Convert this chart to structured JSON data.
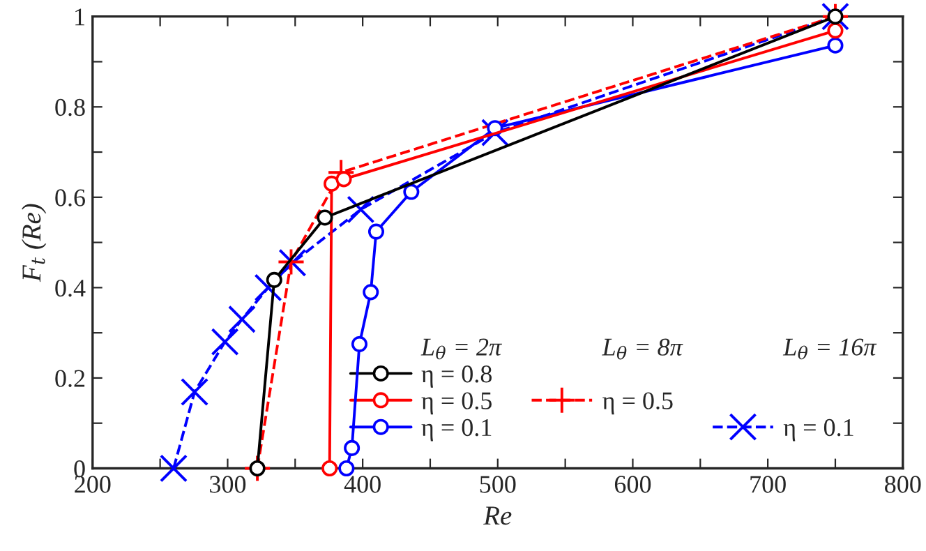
{
  "chart_data": {
    "type": "line",
    "xlabel": "Re",
    "ylabel": "F$_{t}$ (Re)",
    "xlim": [
      200,
      800
    ],
    "ylim": [
      0,
      1
    ],
    "xticks": [
      200,
      {
        "value": 250,
        "label": null
      },
      300,
      {
        "value": 350,
        "label": null
      },
      400,
      {
        "value": 450,
        "label": null
      },
      500,
      {
        "value": 550,
        "label": null
      },
      600,
      {
        "value": 650,
        "label": null
      },
      700,
      {
        "value": 750,
        "label": null
      },
      800
    ],
    "yticks": [
      0,
      {
        "value": 0.1,
        "label": null
      },
      0.2,
      {
        "value": 0.3,
        "label": null
      },
      0.4,
      {
        "value": 0.5,
        "label": null
      },
      0.6,
      {
        "value": 0.7,
        "label": null
      },
      0.8,
      {
        "value": 0.9,
        "label": null
      },
      1
    ],
    "grid": false,
    "legend": "bottom right",
    "annotations": [
      "L$_{θ}$ = 2π",
      "L$_{θ}$ = 8π",
      "L$_{θ}$ = 16π"
    ],
    "series": [
      {
        "name": "η = 0.8",
        "color": "#000000",
        "marker": "circle",
        "line_style": "solid",
        "x": [
          322,
          334.5,
          372,
          750
        ],
        "values": [
          0,
          0.417,
          0.555,
          1.0
        ]
      },
      {
        "name": "η = 0.5",
        "color": "#ff0000",
        "marker": "circle",
        "line_style": "solid",
        "x": [
          375.5,
          377,
          386,
          750
        ],
        "values": [
          0,
          0.63,
          0.64,
          0.969
        ]
      },
      {
        "name": "η = 0.1",
        "color": "#0000ff",
        "marker": "circle",
        "line_style": "solid",
        "x": [
          388,
          392,
          397.6,
          406,
          410,
          436,
          498,
          750
        ],
        "values": [
          0,
          0.045,
          0.275,
          0.39,
          0.524,
          0.612,
          0.753,
          0.936
        ]
      },
      {
        "name": "η = 0.5",
        "color": "#ff0000",
        "marker": "plus",
        "line_style": "dashed",
        "x": [
          322,
          347,
          384,
          750
        ],
        "values": [
          0,
          0.457,
          0.655,
          1.0
        ]
      },
      {
        "name": "η = 0.1",
        "color": "#0000ff",
        "marker": "cross",
        "line_style": "dashed",
        "x": [
          260,
          275.5,
          298,
          310.6,
          330,
          348,
          398.6,
          498,
          750
        ],
        "values": [
          0,
          0.169,
          0.28,
          0.33,
          0.4,
          0.455,
          0.573,
          0.743,
          1.0
        ]
      }
    ]
  }
}
